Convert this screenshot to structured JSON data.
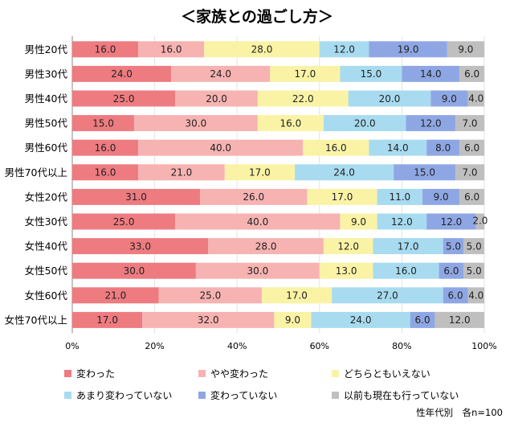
{
  "chart_data": {
    "type": "bar",
    "orientation": "horizontal",
    "stacked": true,
    "title": "＜家族との過ごし方＞",
    "footnote": "性年代別　各n=100",
    "xlim": [
      0,
      100
    ],
    "x_ticks": [
      "0%",
      "20%",
      "40%",
      "60%",
      "80%",
      "100%"
    ],
    "grid": true,
    "legend_position": "bottom",
    "categories": [
      "男性20代",
      "男性30代",
      "男性40代",
      "男性50代",
      "男性60代",
      "男性70代以上",
      "女性20代",
      "女性30代",
      "女性40代",
      "女性50代",
      "女性60代",
      "女性70代以上"
    ],
    "series": [
      {
        "name": "変わった",
        "color": "#EE7B80",
        "values": [
          16.0,
          24.0,
          25.0,
          15.0,
          16.0,
          16.0,
          31.0,
          25.0,
          33.0,
          30.0,
          21.0,
          17.0
        ]
      },
      {
        "name": "やや変わった",
        "color": "#F6B3B2",
        "values": [
          16.0,
          24.0,
          20.0,
          30.0,
          40.0,
          21.0,
          26.0,
          40.0,
          28.0,
          30.0,
          25.0,
          32.0
        ]
      },
      {
        "name": "どちらともいえない",
        "color": "#FAF3A6",
        "values": [
          28.0,
          17.0,
          22.0,
          16.0,
          16.0,
          17.0,
          17.0,
          9.0,
          12.0,
          13.0,
          17.0,
          9.0
        ]
      },
      {
        "name": "あまり変わっていない",
        "color": "#A8DBF0",
        "values": [
          12.0,
          15.0,
          20.0,
          20.0,
          14.0,
          24.0,
          11.0,
          12.0,
          17.0,
          16.0,
          27.0,
          24.0
        ]
      },
      {
        "name": "変わっていない",
        "color": "#8EA7E4",
        "values": [
          19.0,
          14.0,
          9.0,
          12.0,
          8.0,
          15.0,
          9.0,
          12.0,
          5.0,
          6.0,
          6.0,
          6.0
        ]
      },
      {
        "name": "以前も現在も行っていない",
        "color": "#BFBFBF",
        "values": [
          9.0,
          6.0,
          4.0,
          7.0,
          6.0,
          7.0,
          6.0,
          2.0,
          5.0,
          5.0,
          4.0,
          12.0
        ]
      }
    ]
  }
}
